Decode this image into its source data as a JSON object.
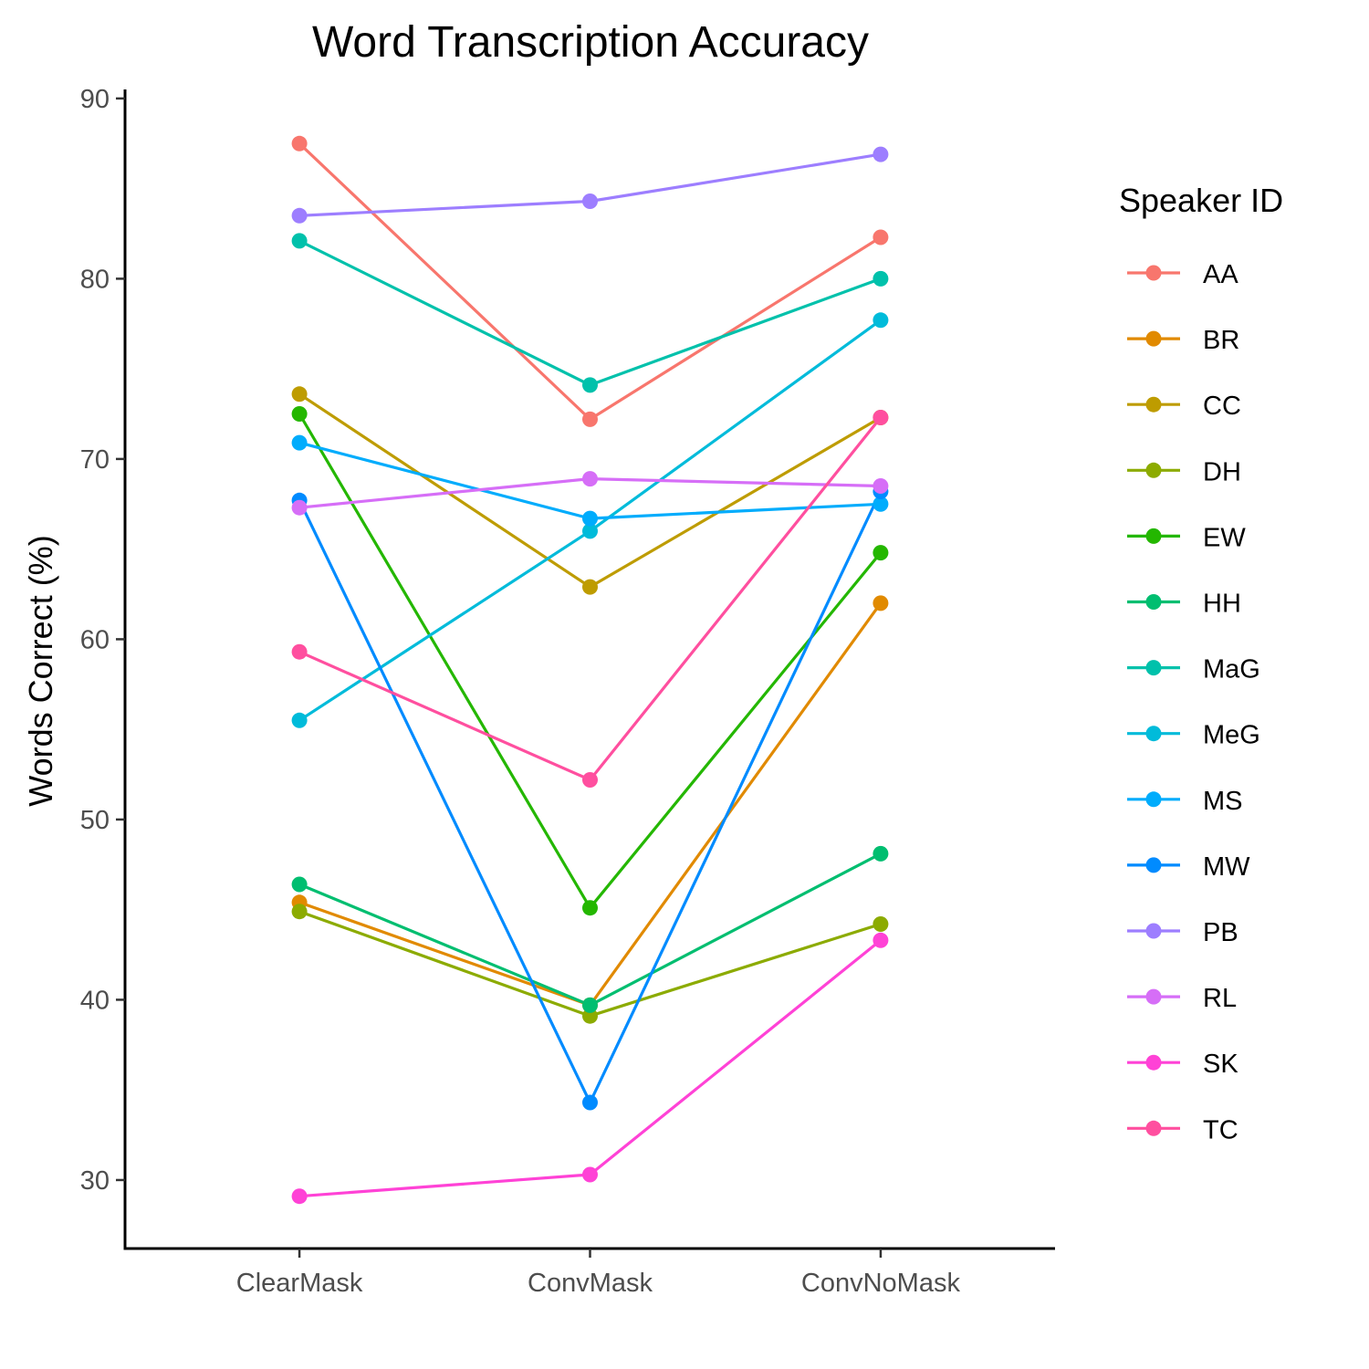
{
  "chart_data": {
    "type": "line",
    "title": "Word Transcription Accuracy",
    "xlabel": "",
    "ylabel": "Words Correct (%)",
    "categories": [
      "ClearMask",
      "ConvMask",
      "ConvNoMask"
    ],
    "y_ticks": [
      30,
      40,
      50,
      60,
      70,
      80,
      90
    ],
    "ylim": [
      26.2,
      90.5
    ],
    "grid": false,
    "legend": {
      "title": "Speaker ID",
      "position": "right"
    },
    "series": [
      {
        "name": "AA",
        "color": "#F8766D",
        "values": [
          87.5,
          72.2,
          82.3
        ]
      },
      {
        "name": "BR",
        "color": "#E18A00",
        "values": [
          45.4,
          39.7,
          62.0
        ]
      },
      {
        "name": "CC",
        "color": "#BE9C00",
        "values": [
          73.6,
          62.9,
          72.3
        ]
      },
      {
        "name": "DH",
        "color": "#8CAB00",
        "values": [
          44.9,
          39.1,
          44.2
        ]
      },
      {
        "name": "EW",
        "color": "#24B700",
        "values": [
          72.5,
          45.1,
          64.8
        ]
      },
      {
        "name": "HH",
        "color": "#00BE70",
        "values": [
          46.4,
          39.7,
          48.1
        ]
      },
      {
        "name": "MaG",
        "color": "#00C1AB",
        "values": [
          82.1,
          74.1,
          80.0
        ]
      },
      {
        "name": "MeG",
        "color": "#00BBDA",
        "values": [
          55.5,
          66.0,
          77.7
        ]
      },
      {
        "name": "MS",
        "color": "#00ACFC",
        "values": [
          70.9,
          66.7,
          67.5
        ]
      },
      {
        "name": "MW",
        "color": "#008BFF",
        "values": [
          67.7,
          34.3,
          68.2
        ]
      },
      {
        "name": "PB",
        "color": "#9D7EFF",
        "values": [
          83.5,
          84.3,
          86.9
        ]
      },
      {
        "name": "RL",
        "color": "#D66EF7",
        "values": [
          67.3,
          68.9,
          68.5
        ]
      },
      {
        "name": "SK",
        "color": "#FF42D6",
        "values": [
          29.1,
          30.3,
          43.3
        ]
      },
      {
        "name": "TC",
        "color": "#FF4F9F",
        "values": [
          59.3,
          52.2,
          72.3
        ]
      }
    ]
  }
}
